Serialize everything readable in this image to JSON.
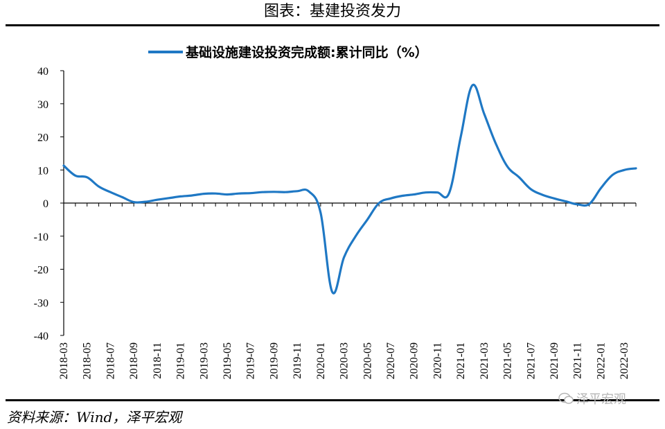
{
  "header": {
    "title": "图表：基建投资发力"
  },
  "footer": {
    "source": "资料来源：Wind，泽平宏观",
    "watermark": "泽平宏观",
    "watermark_icon": "wechat-icon"
  },
  "colors": {
    "series": "#1f78c4",
    "axis": "#000000"
  },
  "chart_data": {
    "type": "line",
    "legend_position": "top-center",
    "grid": false,
    "ylim": [
      -40,
      40
    ],
    "yticks": [
      40,
      30,
      20,
      10,
      0,
      -10,
      -20,
      -30,
      -40
    ],
    "xtick_labels": [
      "2018-03",
      "2018-05",
      "2018-07",
      "2018-09",
      "2018-11",
      "2019-01",
      "2019-03",
      "2019-05",
      "2019-07",
      "2019-09",
      "2019-11",
      "2020-01",
      "2020-03",
      "2020-05",
      "2020-07",
      "2020-09",
      "2020-11",
      "2021-01",
      "2021-03",
      "2021-05",
      "2021-07",
      "2021-09",
      "2021-11",
      "2022-01",
      "2022-03"
    ],
    "series": [
      {
        "name": "基础设施建设投资完成额:累计同比（%）",
        "x": [
          "2018-03",
          "2018-04",
          "2018-05",
          "2018-06",
          "2018-07",
          "2018-08",
          "2018-09",
          "2018-10",
          "2018-11",
          "2018-12",
          "2019-01",
          "2019-02",
          "2019-03",
          "2019-04",
          "2019-05",
          "2019-06",
          "2019-07",
          "2019-08",
          "2019-09",
          "2019-10",
          "2019-11",
          "2019-12",
          "2020-01",
          "2020-02",
          "2020-03",
          "2020-04",
          "2020-05",
          "2020-06",
          "2020-07",
          "2020-08",
          "2020-09",
          "2020-10",
          "2020-11",
          "2020-12",
          "2021-01",
          "2021-02",
          "2021-03",
          "2021-04",
          "2021-05",
          "2021-06",
          "2021-07",
          "2021-08",
          "2021-09",
          "2021-10",
          "2021-11",
          "2021-12",
          "2022-01",
          "2022-02",
          "2022-03",
          "2022-04"
        ],
        "values": [
          11.3,
          8.3,
          7.8,
          5.0,
          3.3,
          1.8,
          0.3,
          0.4,
          1.0,
          1.5,
          2.0,
          2.3,
          2.8,
          2.9,
          2.6,
          2.9,
          3.0,
          3.3,
          3.4,
          3.3,
          3.6,
          3.5,
          -3.0,
          -26.9,
          -16.4,
          -10.0,
          -5.0,
          0.0,
          1.4,
          2.2,
          2.6,
          3.2,
          3.2,
          3.0,
          20.0,
          35.6,
          27.0,
          18.0,
          11.0,
          7.8,
          4.2,
          2.5,
          1.4,
          0.5,
          -0.4,
          -0.3,
          4.5,
          8.5,
          10.0,
          10.5
        ]
      }
    ]
  }
}
